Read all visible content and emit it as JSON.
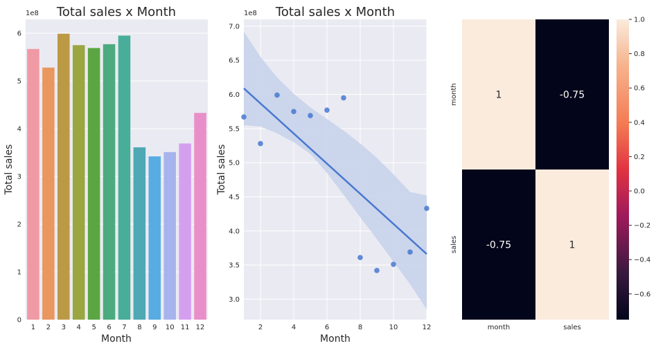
{
  "chart_data": [
    {
      "type": "bar",
      "title": "Total sales x Month",
      "xlabel": "Month",
      "ylabel": "Total sales",
      "multiplier": "1e8",
      "categories": [
        "1",
        "2",
        "3",
        "4",
        "5",
        "6",
        "7",
        "8",
        "9",
        "10",
        "11",
        "12"
      ],
      "values": [
        5.67,
        5.28,
        5.99,
        5.75,
        5.69,
        5.77,
        5.95,
        3.61,
        3.42,
        3.51,
        3.69,
        4.33
      ],
      "ylim": [
        0,
        6.29
      ],
      "yticks": [
        0,
        1,
        2,
        3,
        4,
        5,
        6
      ],
      "colors": [
        "#ef9aa4",
        "#ea965f",
        "#bb9a46",
        "#9aa642",
        "#5ba643",
        "#4bab7e",
        "#48ae99",
        "#4ea9b4",
        "#57ade2",
        "#a7b3ec",
        "#d59ff0",
        "#e88fc9"
      ],
      "grid": true,
      "background": "#eaeaf2"
    },
    {
      "type": "scatter",
      "title": "Total sales x Month",
      "xlabel": "Month",
      "ylabel": "Total sales",
      "multiplier": "1e8",
      "x": [
        1,
        2,
        3,
        4,
        5,
        6,
        7,
        8,
        9,
        10,
        11,
        12
      ],
      "y": [
        5.67,
        5.28,
        5.99,
        5.75,
        5.69,
        5.77,
        5.95,
        3.61,
        3.42,
        3.51,
        3.69,
        4.33
      ],
      "fit": {
        "intercept": 6.31,
        "slope": -0.2207
      },
      "ci_upper": [
        [
          1,
          6.92
        ],
        [
          2,
          6.55
        ],
        [
          3,
          6.25
        ],
        [
          4,
          6.01
        ],
        [
          5,
          5.81
        ],
        [
          6,
          5.64
        ],
        [
          7,
          5.47
        ],
        [
          8,
          5.28
        ],
        [
          9,
          5.07
        ],
        [
          10,
          4.83
        ],
        [
          11,
          4.57
        ],
        [
          12,
          4.52
        ]
      ],
      "ci_lower": [
        [
          1,
          5.55
        ],
        [
          2,
          5.53
        ],
        [
          3,
          5.43
        ],
        [
          4,
          5.3
        ],
        [
          5,
          5.13
        ],
        [
          6,
          4.85
        ],
        [
          7,
          4.53
        ],
        [
          8,
          4.2
        ],
        [
          9,
          3.88
        ],
        [
          10,
          3.55
        ],
        [
          11,
          3.22
        ],
        [
          12,
          2.85
        ]
      ],
      "xlim": [
        1,
        12
      ],
      "ylim": [
        2.7,
        7.1
      ],
      "xticks": [
        2,
        4,
        6,
        8,
        10,
        12
      ],
      "yticks": [
        3.0,
        3.5,
        4.0,
        4.5,
        5.0,
        5.5,
        6.0,
        6.5,
        7.0
      ],
      "point_color": "#4878d0",
      "band_color": "#c5d1ea",
      "grid": true,
      "background": "#eaeaf2"
    },
    {
      "type": "heatmap",
      "rows": [
        "month",
        "sales"
      ],
      "cols": [
        "month",
        "sales"
      ],
      "values": [
        [
          1,
          -0.75
        ],
        [
          -0.75,
          1
        ]
      ],
      "labels": [
        [
          "1",
          "-0.75"
        ],
        [
          "-0.75",
          "1"
        ]
      ],
      "colorbar": {
        "min": -0.75,
        "max": 1.0,
        "ticks": [
          -0.6,
          -0.4,
          -0.2,
          0.0,
          0.2,
          0.4,
          0.6,
          0.8,
          1.0
        ],
        "tick_labels": [
          "−0.6",
          "−0.4",
          "−0.2",
          "0.0",
          "0.2",
          "0.4",
          "0.6",
          "0.8",
          "1.0"
        ]
      }
    }
  ]
}
